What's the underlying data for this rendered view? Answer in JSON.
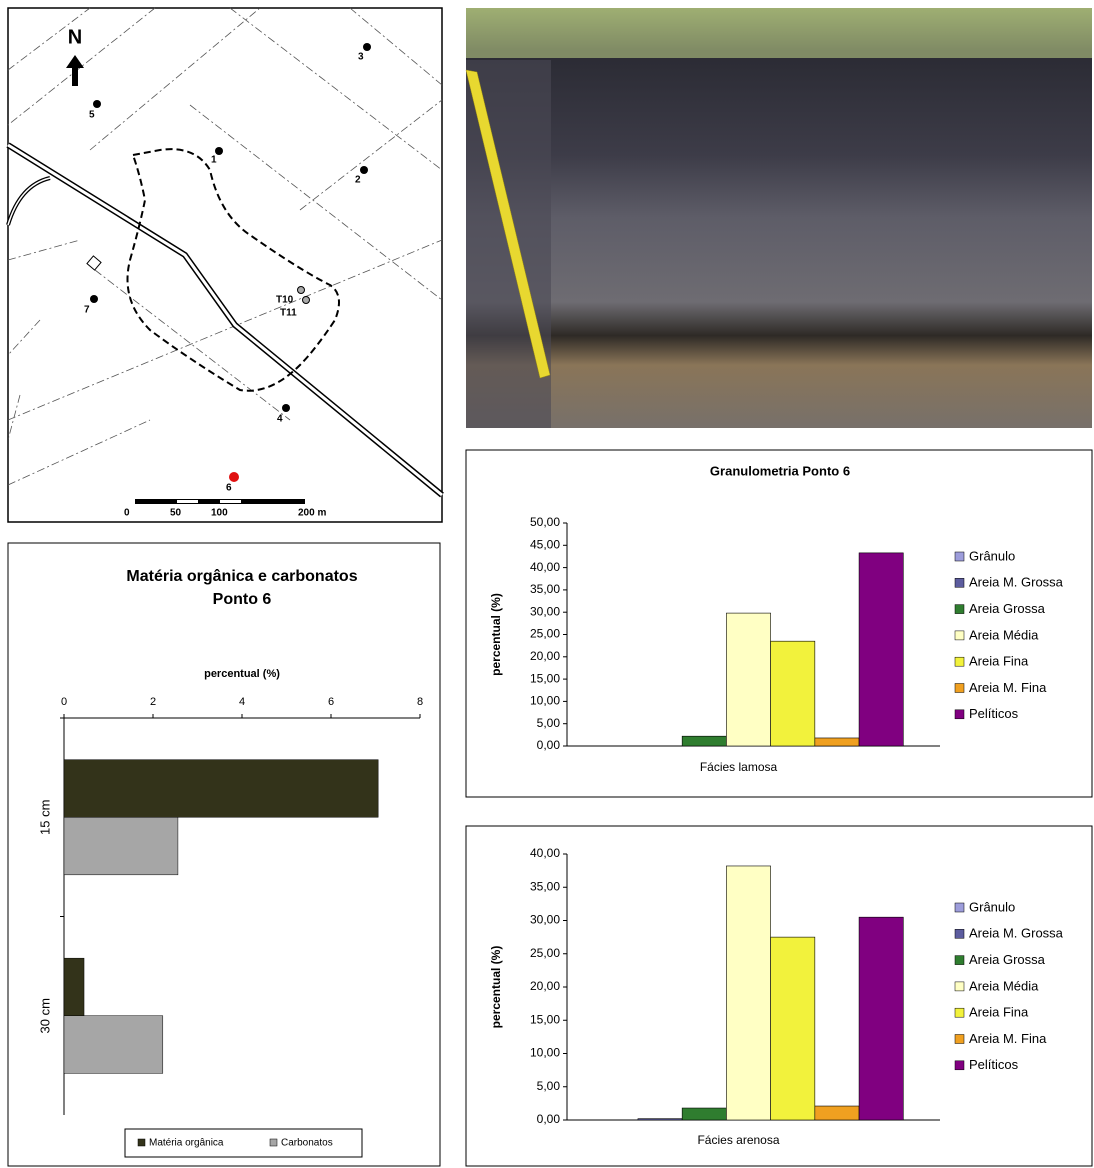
{
  "map": {
    "north": "N",
    "points": [
      "1",
      "2",
      "3",
      "4",
      "5",
      "6",
      "7",
      "T10",
      "T11"
    ],
    "scale": [
      "0",
      "50",
      "100",
      "200 m"
    ]
  },
  "chart_data": [
    {
      "type": "hbar",
      "title": "Matéria orgânica e carbonatos",
      "subtitle": "Ponto 6",
      "x_label": "percentual (%)",
      "categories": [
        "15 cm",
        "30 cm"
      ],
      "series": [
        {
          "name": "Matéria orgânica",
          "color": "#33331a",
          "values": [
            7.06,
            0.45
          ]
        },
        {
          "name": "Carbonatos",
          "color": "#a6a6a6",
          "values": [
            2.56,
            2.22
          ]
        }
      ],
      "xlim": [
        0,
        8
      ],
      "xticks": [
        0,
        2,
        4,
        6,
        8
      ],
      "grid": false,
      "legend": "bottom"
    },
    {
      "type": "bar",
      "title": "Granulometria Ponto 6",
      "y_label": "percentual (%)",
      "categories": [
        "Fácies lamosa"
      ],
      "series": [
        {
          "name": "Grânulo",
          "color": "#9d9ddb",
          "values": [
            0
          ]
        },
        {
          "name": "Areia M. Grossa",
          "color": "#5c5c9e",
          "values": [
            0
          ]
        },
        {
          "name": "Areia Grossa",
          "color": "#2f7d2f",
          "values": [
            2.2
          ]
        },
        {
          "name": "Areia Média",
          "color": "#ffffc4",
          "values": [
            29.8
          ]
        },
        {
          "name": "Areia Fina",
          "color": "#f2f23c",
          "values": [
            23.5
          ]
        },
        {
          "name": "Areia M. Fina",
          "color": "#f0a020",
          "values": [
            1.8
          ]
        },
        {
          "name": "Pelíticos",
          "color": "#800080",
          "values": [
            43.3
          ]
        }
      ],
      "ylim": [
        0,
        50
      ],
      "yticks": [
        {
          "value": 0,
          "label": "0,00"
        },
        {
          "value": 5,
          "label": "5,00"
        },
        {
          "value": 10,
          "label": "10,00"
        },
        {
          "value": 15,
          "label": "15,00"
        },
        {
          "value": 20,
          "label": "20,00"
        },
        {
          "value": 25,
          "label": "25,00"
        },
        {
          "value": 30,
          "label": "30,00"
        },
        {
          "value": 35,
          "label": "35,00"
        },
        {
          "value": 40,
          "label": "40,00"
        },
        {
          "value": 45,
          "label": "45,00"
        },
        {
          "value": 50,
          "label": "50,00"
        }
      ],
      "grid": false,
      "legend": "right"
    },
    {
      "type": "bar",
      "y_label": "percentual (%)",
      "categories": [
        "Fácies arenosa"
      ],
      "series": [
        {
          "name": "Grânulo",
          "color": "#9d9ddb",
          "values": [
            0
          ]
        },
        {
          "name": "Areia M. Grossa",
          "color": "#5c5c9e",
          "values": [
            0.2
          ]
        },
        {
          "name": "Areia Grossa",
          "color": "#2f7d2f",
          "values": [
            1.8
          ]
        },
        {
          "name": "Areia Média",
          "color": "#ffffc4",
          "values": [
            38.2
          ]
        },
        {
          "name": "Areia Fina",
          "color": "#f2f23c",
          "values": [
            27.5
          ]
        },
        {
          "name": "Areia M. Fina",
          "color": "#f0a020",
          "values": [
            2.1
          ]
        },
        {
          "name": "Pelíticos",
          "color": "#800080",
          "values": [
            30.5
          ]
        }
      ],
      "ylim": [
        0,
        40
      ],
      "yticks": [
        {
          "value": 0,
          "label": "0,00"
        },
        {
          "value": 5,
          "label": "5,00"
        },
        {
          "value": 10,
          "label": "10,00"
        },
        {
          "value": 15,
          "label": "15,00"
        },
        {
          "value": 20,
          "label": "20,00"
        },
        {
          "value": 25,
          "label": "25,00"
        },
        {
          "value": 30,
          "label": "30,00"
        },
        {
          "value": 35,
          "label": "35,00"
        },
        {
          "value": 40,
          "label": "40,00"
        }
      ],
      "grid": false,
      "legend": "right"
    }
  ]
}
